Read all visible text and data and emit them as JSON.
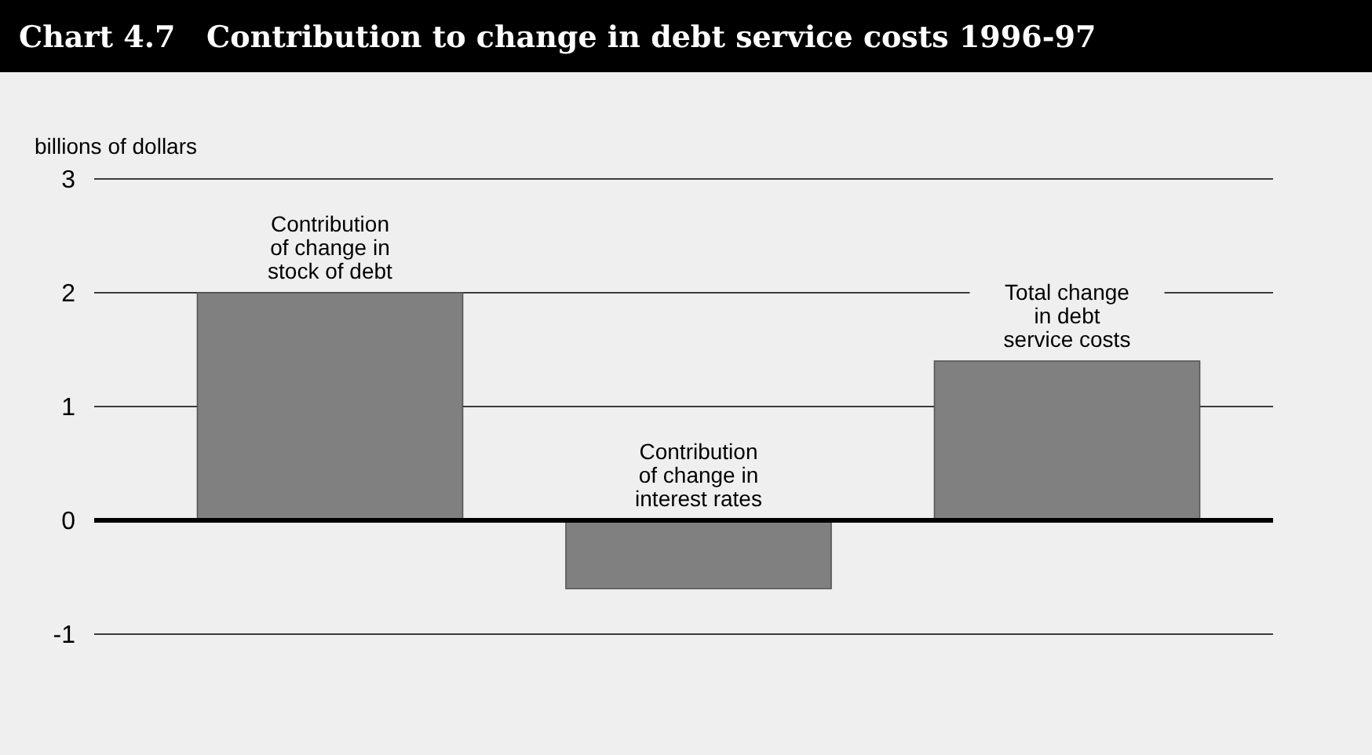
{
  "chart_data": {
    "type": "bar",
    "title": "Chart 4.7   Contribution to change in debt service costs 1996-97",
    "ylabel": "billions of dollars",
    "categories": [
      "Contribution of change in stock of debt",
      "Contribution of change in interest rates",
      "Total change in debt service costs"
    ],
    "values": [
      2,
      -0.6,
      1.4
    ],
    "color": "#808080",
    "ylim": [
      -1,
      3
    ],
    "yticks": [
      -1,
      0,
      1,
      2,
      3
    ],
    "grid": "y"
  }
}
